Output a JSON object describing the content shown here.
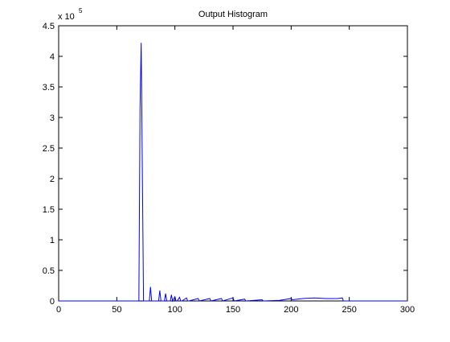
{
  "chart_data": {
    "type": "line",
    "title": "Output Histogram",
    "y_multiplier": "x 10",
    "y_exponent": "5",
    "x": [
      0,
      69,
      70,
      71,
      72,
      73,
      78,
      79,
      80,
      86,
      87,
      88,
      91,
      92,
      93,
      96,
      97,
      98,
      100,
      101,
      102,
      104,
      105,
      106,
      110,
      111,
      112,
      120,
      121,
      130,
      131,
      140,
      141,
      150,
      151,
      160,
      161,
      175,
      176,
      190,
      200,
      201,
      210,
      220,
      230,
      240,
      244,
      245,
      300
    ],
    "series": [
      {
        "color": "#0000ff",
        "values": [
          0,
          0,
          3.15,
          4.22,
          2.1,
          0,
          0,
          0.23,
          0,
          0,
          0.17,
          0,
          0,
          0.12,
          0,
          0,
          0.1,
          0,
          0.07,
          0,
          0,
          0.06,
          0,
          0,
          0.05,
          0,
          0,
          0.04,
          0,
          0.04,
          0,
          0.04,
          0,
          0.05,
          0,
          0.03,
          0,
          0.02,
          0,
          0.01,
          0.04,
          0.02,
          0.04,
          0.05,
          0.04,
          0.04,
          0.05,
          0,
          0
        ]
      }
    ],
    "xlim": [
      0,
      300
    ],
    "xticks": [
      0,
      50,
      100,
      150,
      200,
      250,
      300
    ],
    "ylim": [
      0,
      4.5
    ],
    "yticks": [
      0,
      0.5,
      1,
      1.5,
      2,
      2.5,
      3,
      3.5,
      4,
      4.5
    ],
    "grid": false
  }
}
